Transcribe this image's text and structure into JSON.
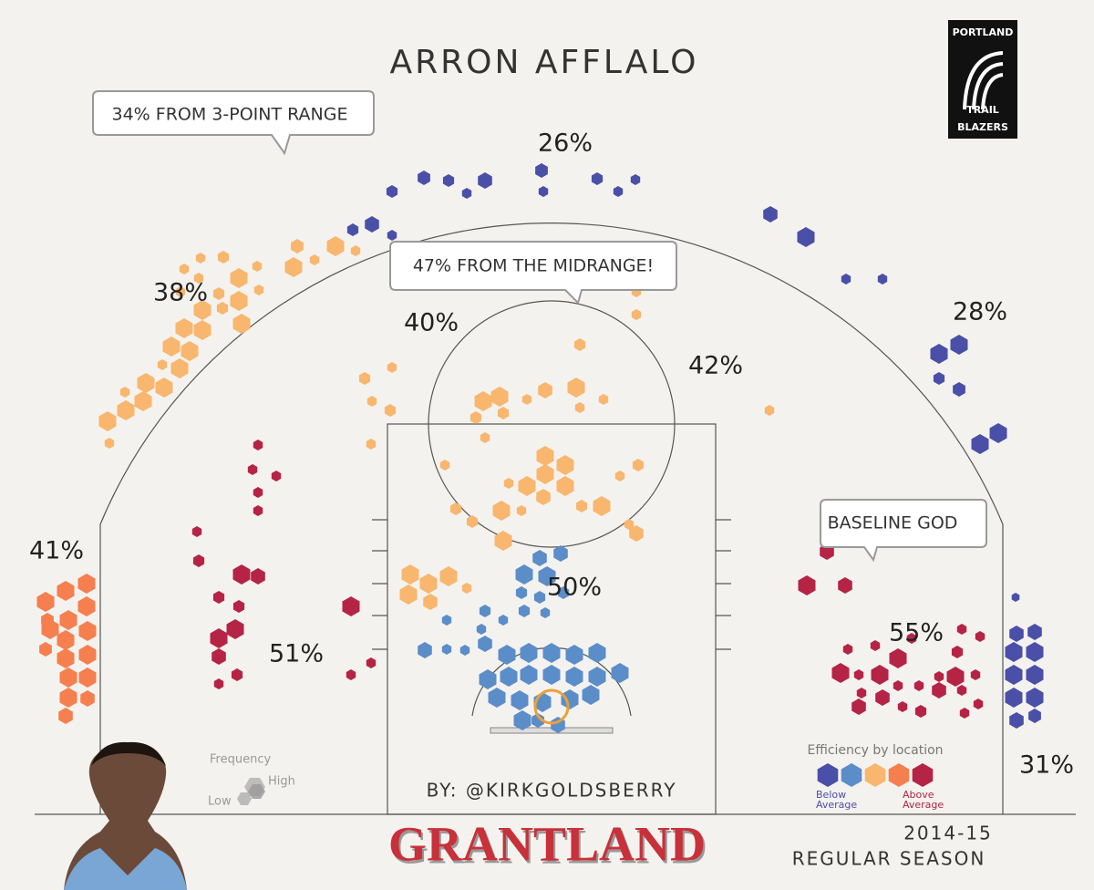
{
  "title": "ARRON AFFLALO",
  "logo": {
    "top": "PORTLAND",
    "middle": "TRAIL",
    "bottom": "BLAZERS"
  },
  "callouts": [
    "34% FROM 3-POINT RANGE",
    "47% FROM THE MIDRANGE!",
    "BASELINE GOD"
  ],
  "zones": [
    "26%",
    "38%",
    "40%",
    "42%",
    "28%",
    "41%",
    "50%",
    "51%",
    "55%",
    "31%"
  ],
  "frequency_legend": {
    "title": "Frequency",
    "low": "Low",
    "high": "High"
  },
  "efficiency_legend": {
    "title": "Efficiency by location",
    "below": [
      "Below",
      "Average"
    ],
    "above": [
      "Above",
      "Average"
    ]
  },
  "credit": "BY: @KIRKGOLDSBERRY",
  "brand": "GRANTLAND",
  "season": [
    "2014-15",
    "REGULAR SEASON"
  ]
}
